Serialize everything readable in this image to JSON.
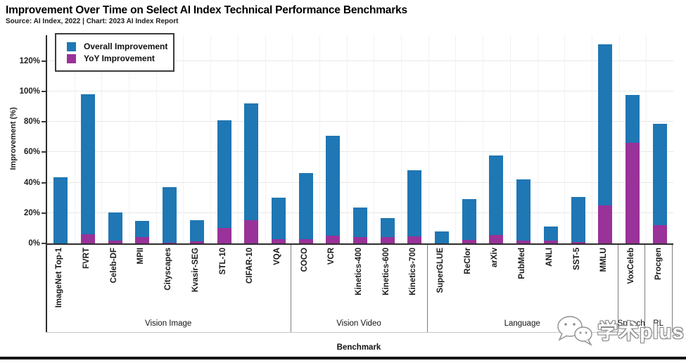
{
  "page": {
    "title": "Improvement Over Time on Select AI Index Technical Performance Benchmarks",
    "subtitle": "Source: AI Index, 2022 | Chart: 2023 AI Index Report"
  },
  "legend": {
    "items": [
      {
        "label": "Overall Improvement",
        "color": "#1f77b4"
      },
      {
        "label": "YoY Improvement",
        "color": "#993299"
      }
    ]
  },
  "colors": {
    "overall": "#1f77b4",
    "yoy": "#993299",
    "axis": "#2d2d2d",
    "grid": "#e8e8e8",
    "group_separator": "#7d7d7d",
    "bottom_bar": "#161616"
  },
  "watermark": {
    "text": "学术plus",
    "icon": "wechat-chat-bubbles-icon"
  },
  "chart_data": {
    "type": "bar",
    "title": "Improvement Over Time on Select AI Index Technical Performance Benchmarks",
    "subtitle": "Source: AI Index, 2022 | Chart: 2023 AI Index Report",
    "xlabel": "Benchmark",
    "ylabel": "Improvement (%)",
    "ylim": [
      0,
      137
    ],
    "grid": true,
    "legend_position": "top-left",
    "bar_style": "YoY bar drawn overlaid at the base of the Overall bar",
    "yticks": [
      {
        "value": 0,
        "label": "0%"
      },
      {
        "value": 20,
        "label": "20%"
      },
      {
        "value": 40,
        "label": "40%"
      },
      {
        "value": 60,
        "label": "60%"
      },
      {
        "value": 80,
        "label": "80%"
      },
      {
        "value": 100,
        "label": "100%"
      },
      {
        "value": 120,
        "label": "120%"
      }
    ],
    "series_names": [
      "Overall Improvement",
      "YoY Improvement"
    ],
    "groups": [
      {
        "label": "Vision Image",
        "items": [
          {
            "benchmark": "ImageNet Top-1",
            "overall": 43.5,
            "yoy": 0
          },
          {
            "benchmark": "FVRT",
            "overall": 98,
            "yoy": 6
          },
          {
            "benchmark": "Celeb-DF",
            "overall": 20.5,
            "yoy": 2
          },
          {
            "benchmark": "MPII",
            "overall": 15,
            "yoy": 4
          },
          {
            "benchmark": "Cityscapes",
            "overall": 37,
            "yoy": 0.5
          },
          {
            "benchmark": "Kvasir-SEG",
            "overall": 15.5,
            "yoy": 1.5
          },
          {
            "benchmark": "STL-10",
            "overall": 81,
            "yoy": 10
          },
          {
            "benchmark": "CIFAR-10",
            "overall": 92,
            "yoy": 15.5
          },
          {
            "benchmark": "VQA",
            "overall": 30,
            "yoy": 3
          }
        ]
      },
      {
        "label": "Vision Video",
        "items": [
          {
            "benchmark": "COCO",
            "overall": 46.5,
            "yoy": 3
          },
          {
            "benchmark": "VCR",
            "overall": 71,
            "yoy": 5
          },
          {
            "benchmark": "Kinetics-400",
            "overall": 23.5,
            "yoy": 4
          },
          {
            "benchmark": "Kinetics-600",
            "overall": 16.5,
            "yoy": 4
          },
          {
            "benchmark": "Kinetics-700",
            "overall": 48,
            "yoy": 4.5
          }
        ]
      },
      {
        "label": "Language",
        "items": [
          {
            "benchmark": "SuperGLUE",
            "overall": 8,
            "yoy": 0
          },
          {
            "benchmark": "ReClor",
            "overall": 29,
            "yoy": 2.5
          },
          {
            "benchmark": "arXiv",
            "overall": 58,
            "yoy": 5.5
          },
          {
            "benchmark": "PubMed",
            "overall": 42,
            "yoy": 2
          },
          {
            "benchmark": "ANLI",
            "overall": 11,
            "yoy": 2
          },
          {
            "benchmark": "SST-5",
            "overall": 30.5,
            "yoy": 1
          },
          {
            "benchmark": "MMLU",
            "overall": 131,
            "yoy": 25
          }
        ]
      },
      {
        "label": "Speech",
        "items": [
          {
            "benchmark": "VoxCeleb",
            "overall": 97.5,
            "yoy": 66
          }
        ]
      },
      {
        "label": "RL",
        "items": [
          {
            "benchmark": "Procgen",
            "overall": 78.5,
            "yoy": 12
          }
        ]
      }
    ]
  }
}
